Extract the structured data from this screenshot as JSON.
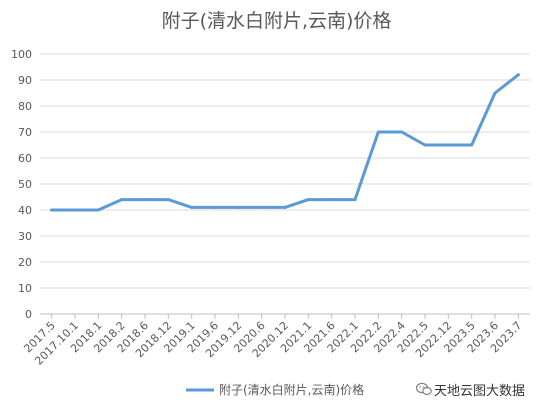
{
  "chart_data": {
    "type": "line",
    "title": "附子(清水白附片,云南)价格",
    "categories": [
      "2017.5",
      "2017.10.1",
      "2018.1",
      "2018.2",
      "2018.6",
      "2018.12",
      "2019.1",
      "2019.6",
      "2019.12",
      "2020.6",
      "2020.12",
      "2021.1",
      "2021.6",
      "2022.1",
      "2022.2",
      "2022.4",
      "2022.5",
      "2022.12",
      "2023.5",
      "2023.6",
      "2023.7"
    ],
    "series": [
      {
        "name": "附子(清水白附片,云南)价格",
        "values": [
          40,
          40,
          40,
          44,
          44,
          44,
          41,
          41,
          41,
          41,
          41,
          44,
          44,
          44,
          70,
          70,
          65,
          65,
          65,
          85,
          92
        ]
      }
    ],
    "y_ticks": [
      "0",
      "10",
      "20",
      "30",
      "40",
      "50",
      "60",
      "70",
      "80",
      "90",
      "100"
    ],
    "ylim": [
      0,
      100
    ],
    "grid": true,
    "legend_position": "bottom",
    "colors": {
      "line": "#5B9BD5",
      "grid": "#D9D9D9",
      "axis": "#BFBFBF",
      "text": "#595959"
    }
  },
  "watermark": {
    "text": "天地云图大数据",
    "icon": "wechat-icon"
  }
}
